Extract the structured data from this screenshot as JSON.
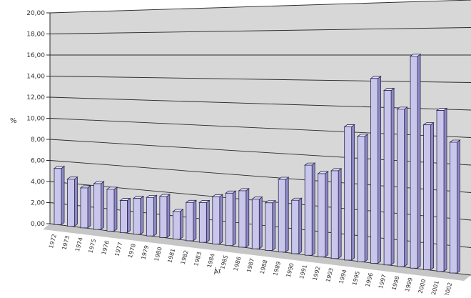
{
  "chart_data": {
    "type": "bar",
    "title": "",
    "xlabel": "Ár",
    "ylabel": "%",
    "ylim": [
      0,
      20
    ],
    "y_ticks": [
      "0,00",
      "2,00",
      "4,00",
      "6,00",
      "8,00",
      "10,00",
      "12,00",
      "14,00",
      "16,00",
      "18,00",
      "20,00"
    ],
    "grid": true,
    "style": "3d-bar",
    "colors": {
      "bar_front": "#c9c6ec",
      "bar_side": "#8d89c2",
      "bar_top": "#e4e2f7",
      "bar_stroke": "#2d2a55",
      "wall": "#d7d7d7",
      "floor": "#c6c6c6",
      "grid": "#2b2b2b",
      "tick_label": "#333333"
    },
    "categories": [
      "1972",
      "1973",
      "1974",
      "1975",
      "1976",
      "1977",
      "1978",
      "1979",
      "1980",
      "1981",
      "1982",
      "1983",
      "1984",
      "1985",
      "1986",
      "1987",
      "1988",
      "1989",
      "1990",
      "1991",
      "1992",
      "1993",
      "1994",
      "1995",
      "1996",
      "1997",
      "1998",
      "1999",
      "2000",
      "2001",
      "2002"
    ],
    "values": [
      5.3,
      4.4,
      3.7,
      4.2,
      3.8,
      2.9,
      3.2,
      3.4,
      3.6,
      2.4,
      3.3,
      3.4,
      4.0,
      4.4,
      4.7,
      4.1,
      3.9,
      5.9,
      4.3,
      7.2,
      6.6,
      6.9,
      10.4,
      9.7,
      14.2,
      13.3,
      11.9,
      15.9,
      10.8,
      11.9,
      9.6
    ]
  }
}
